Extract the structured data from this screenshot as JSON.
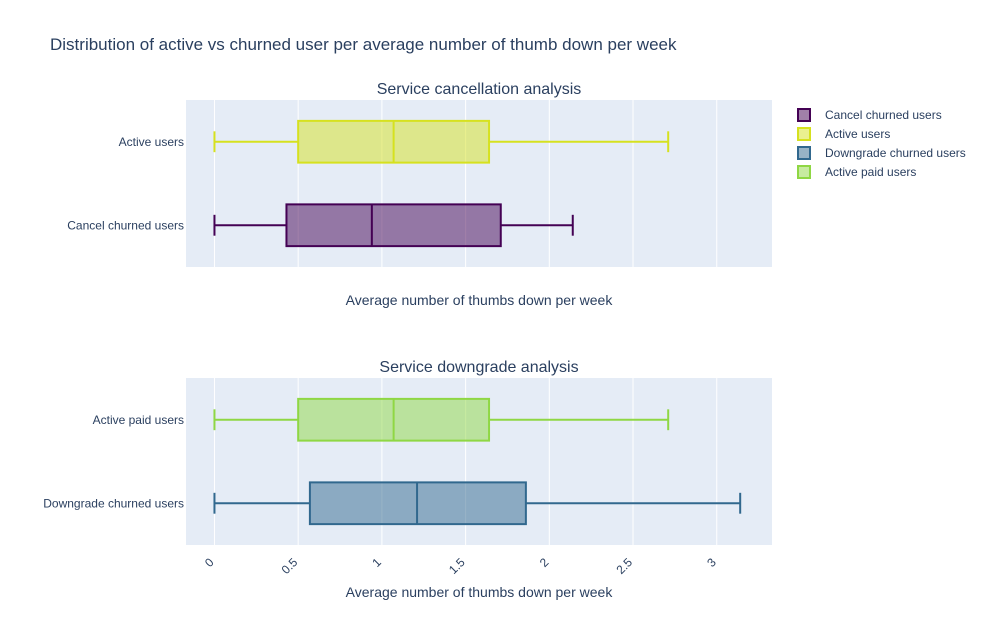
{
  "figure": {
    "title": "Distribution of active vs churned user per average number of thumb down per week"
  },
  "chart_data": [
    {
      "type": "box",
      "title": "Service cancellation analysis",
      "xlabel": "Average number of thumbs down per week",
      "xlim": [
        -0.17,
        3.33
      ],
      "x_ticks": [
        0,
        0.5,
        1,
        1.5,
        2,
        2.5,
        3
      ],
      "tick_labels": [
        "0",
        "0.5",
        "1",
        "1.5",
        "2",
        "2.5",
        "3"
      ],
      "show_tick_labels": false,
      "grid": true,
      "series": [
        {
          "name": "Cancel churned users",
          "color": "#440154",
          "min": 0,
          "q1": 0.43,
          "median": 0.94,
          "q3": 1.71,
          "max": 2.14
        },
        {
          "name": "Active users",
          "color": "#d6e11f",
          "min": 0,
          "q1": 0.5,
          "median": 1.07,
          "q3": 1.64,
          "max": 2.71
        }
      ]
    },
    {
      "type": "box",
      "title": "Service downgrade analysis",
      "xlabel": "Average number of thumbs down per week",
      "xlim": [
        -0.17,
        3.33
      ],
      "x_ticks": [
        0,
        0.5,
        1,
        1.5,
        2,
        2.5,
        3
      ],
      "tick_labels": [
        "0",
        "0.5",
        "1",
        "1.5",
        "2",
        "2.5",
        "3"
      ],
      "show_tick_labels": true,
      "grid": true,
      "series": [
        {
          "name": "Downgrade churned users",
          "color": "#31688e",
          "min": 0,
          "q1": 0.57,
          "median": 1.21,
          "q3": 1.86,
          "max": 3.14
        },
        {
          "name": "Active paid users",
          "color": "#8fd744",
          "min": 0,
          "q1": 0.5,
          "median": 1.07,
          "q3": 1.64,
          "max": 2.71
        }
      ]
    }
  ],
  "legend": {
    "placement": "top-right",
    "items": [
      {
        "label": "Cancel churned users",
        "color": "#440154"
      },
      {
        "label": "Active users",
        "color": "#d6e11f"
      },
      {
        "label": "Downgrade churned users",
        "color": "#31688e"
      },
      {
        "label": "Active paid users",
        "color": "#8fd744"
      }
    ]
  },
  "style": {
    "plot_bg": "#e5ecf6",
    "grid_color": "#ffffff",
    "text_color": "#2a3f5f"
  }
}
